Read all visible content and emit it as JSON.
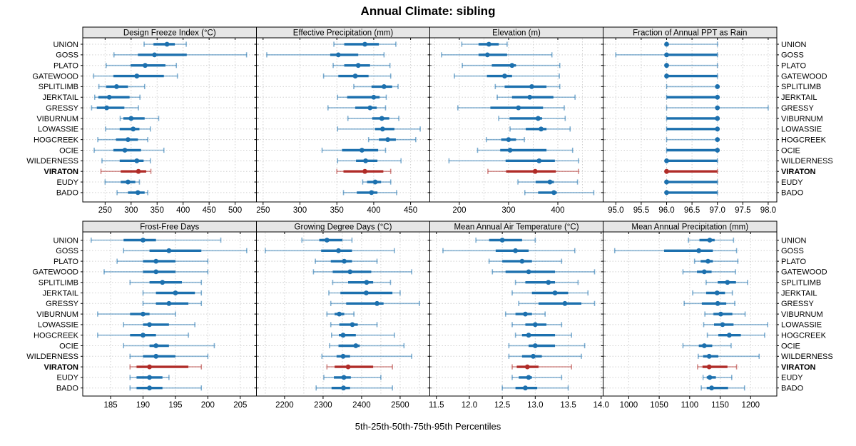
{
  "title": "Annual Climate: sibling",
  "caption": "5th-25th-50th-75th-95th Percentiles",
  "colors": {
    "blue": "#1c70ae",
    "red": "#b02c28",
    "strip_bg": "#e6e6e6",
    "grid": "#d0d0d0",
    "border": "#000000"
  },
  "chart_data": {
    "type": "dot-whisker percentile trellis (lattice dotplot)",
    "percentile_labels": [
      "5th",
      "25th",
      "50th",
      "75th",
      "95th"
    ],
    "layout": {
      "rows": 2,
      "cols": 4
    },
    "legend_position": "none",
    "grid": "dotted",
    "sites": [
      "UNION",
      "GOSS",
      "PLATO",
      "GATEWOOD",
      "SPLITLIMB",
      "JERKTAIL",
      "GRESSY",
      "VIBURNUM",
      "LOWASSIE",
      "HOGCREEK",
      "OCIE",
      "WILDERNESS",
      "VIRATON",
      "EUDY",
      "BADO"
    ],
    "highlight_site": "VIRATON",
    "panels": [
      {
        "title": "Design Freeze Index (°C)",
        "row": 0,
        "col": 0,
        "xlim": [
          207,
          541
        ],
        "ticks": [
          250,
          300,
          350,
          400,
          450,
          500
        ],
        "grid": [
          250,
          300,
          350,
          400,
          450,
          500
        ],
        "tick_decimals": 0,
        "series": {
          "UNION": [
            325,
            343,
            369,
            384,
            406
          ],
          "GOSS": [
            267,
            313,
            345,
            407,
            522
          ],
          "PLATO": [
            252,
            299,
            327,
            366,
            387
          ],
          "GATEWOOD": [
            228,
            266,
            311,
            363,
            389
          ],
          "SPLITLIMB": [
            238,
            252,
            272,
            294,
            326
          ],
          "JERKTAIL": [
            230,
            237,
            258,
            297,
            317
          ],
          "GRESSY": [
            224,
            234,
            253,
            287,
            314
          ],
          "VIBURNUM": [
            279,
            285,
            300,
            326,
            353
          ],
          "LOWASSIE": [
            251,
            278,
            304,
            316,
            337
          ],
          "HOGCREEK": [
            236,
            271,
            294,
            313,
            332
          ],
          "OCIE": [
            229,
            266,
            288,
            319,
            363
          ],
          "WILDERNESS": [
            244,
            278,
            311,
            324,
            337
          ],
          "VIRATON": [
            242,
            280,
            314,
            329,
            338
          ],
          "EUDY": [
            250,
            280,
            294,
            308,
            316
          ],
          "BADO": [
            273,
            294,
            313,
            326,
            332
          ]
        }
      },
      {
        "title": "Effective Precipitation (mm)",
        "row": 0,
        "col": 1,
        "xlim": [
          241,
          476
        ],
        "ticks": [
          250,
          300,
          350,
          400,
          450
        ],
        "grid": [
          250,
          300,
          350,
          400,
          450
        ],
        "tick_decimals": 0,
        "series": {
          "UNION": [
            346,
            360,
            388,
            407,
            430
          ],
          "GOSS": [
            255,
            341,
            352,
            379,
            414
          ],
          "PLATO": [
            345,
            360,
            379,
            395,
            422
          ],
          "GATEWOOD": [
            332,
            352,
            375,
            393,
            423
          ],
          "SPLITLIMB": [
            373,
            397,
            414,
            425,
            433
          ],
          "JERKTAIL": [
            351,
            364,
            400,
            408,
            417
          ],
          "GRESSY": [
            338,
            375,
            395,
            404,
            416
          ],
          "VIBURNUM": [
            365,
            398,
            411,
            421,
            434
          ],
          "LOWASSIE": [
            351,
            402,
            412,
            428,
            463
          ],
          "HOGCREEK": [
            393,
            407,
            419,
            430,
            457
          ],
          "OCIE": [
            330,
            357,
            384,
            406,
            416
          ],
          "WILDERNESS": [
            351,
            376,
            389,
            405,
            437
          ],
          "VIRATON": [
            350,
            359,
            388,
            413,
            423
          ],
          "EUDY": [
            385,
            391,
            402,
            410,
            423
          ],
          "BADO": [
            359,
            377,
            397,
            405,
            431
          ]
        }
      },
      {
        "title": "Elevation (m)",
        "row": 0,
        "col": 2,
        "xlim": [
          140,
          492
        ],
        "ticks": [
          200,
          300,
          400
        ],
        "grid": [
          150,
          200,
          250,
          300,
          350,
          400,
          450
        ],
        "tick_decimals": 0,
        "series": {
          "UNION": [
            205,
            239,
            260,
            280,
            297
          ],
          "GOSS": [
            164,
            239,
            257,
            297,
            388
          ],
          "PLATO": [
            206,
            266,
            307,
            315,
            404
          ],
          "GATEWOOD": [
            190,
            256,
            292,
            307,
            403
          ],
          "SPLITLIMB": [
            273,
            292,
            347,
            377,
            404
          ],
          "JERKTAIL": [
            277,
            307,
            343,
            391,
            435
          ],
          "GRESSY": [
            197,
            263,
            320,
            370,
            413
          ],
          "VIBURNUM": [
            280,
            302,
            360,
            368,
            415
          ],
          "LOWASSIE": [
            303,
            335,
            366,
            377,
            425
          ],
          "HOGCREEK": [
            255,
            285,
            300,
            315,
            332
          ],
          "OCIE": [
            237,
            283,
            303,
            377,
            430
          ],
          "WILDERNESS": [
            179,
            294,
            362,
            394,
            442
          ],
          "VIRATON": [
            258,
            295,
            354,
            396,
            442
          ],
          "EUDY": [
            319,
            355,
            384,
            392,
            440
          ],
          "BADO": [
            333,
            360,
            392,
            398,
            473
          ]
        }
      },
      {
        "title": "Fraction of Annual PPT as Rain",
        "row": 0,
        "col": 3,
        "xlim": [
          94.75,
          98.17
        ],
        "ticks": [
          95.0,
          95.5,
          96.0,
          96.5,
          97.0,
          97.5,
          98.0
        ],
        "grid": [
          95.0,
          95.5,
          96.0,
          96.5,
          97.0,
          97.5,
          98.0
        ],
        "tick_decimals": 1,
        "series": {
          "UNION": [
            96,
            96,
            96,
            96,
            97
          ],
          "GOSS": [
            95,
            96,
            96,
            97,
            97
          ],
          "PLATO": [
            96,
            96,
            96,
            96,
            97
          ],
          "GATEWOOD": [
            96,
            96,
            96,
            97,
            97
          ],
          "SPLITLIMB": [
            96,
            97,
            97,
            97,
            97
          ],
          "JERKTAIL": [
            96,
            96,
            97,
            97,
            97
          ],
          "GRESSY": [
            96,
            97,
            97,
            97,
            98
          ],
          "VIBURNUM": [
            96,
            96,
            97,
            97,
            97
          ],
          "LOWASSIE": [
            96,
            96,
            97,
            97,
            97
          ],
          "HOGCREEK": [
            96,
            97,
            97,
            97,
            97
          ],
          "OCIE": [
            96,
            96,
            97,
            97,
            97
          ],
          "WILDERNESS": [
            96,
            96,
            96,
            97,
            97
          ],
          "VIRATON": [
            96,
            96,
            96,
            97,
            97
          ],
          "EUDY": [
            96,
            96,
            96,
            97,
            97
          ],
          "BADO": [
            96,
            96,
            96,
            97,
            97
          ]
        }
      },
      {
        "title": "Frost-Free Days",
        "row": 1,
        "col": 0,
        "xlim": [
          180.7,
          207.5
        ],
        "ticks": [
          185,
          190,
          195,
          200,
          205
        ],
        "grid": [
          185,
          190,
          195,
          200,
          205
        ],
        "tick_decimals": 0,
        "series": {
          "UNION": [
            182,
            187,
            190,
            192,
            202
          ],
          "GOSS": [
            187,
            191,
            194,
            199,
            206
          ],
          "PLATO": [
            186,
            190,
            192,
            195,
            200
          ],
          "GATEWOOD": [
            184,
            190,
            192,
            195,
            200
          ],
          "SPLITLIMB": [
            188,
            191,
            193,
            196,
            199
          ],
          "JERKTAIL": [
            190,
            192,
            195,
            198,
            199
          ],
          "GRESSY": [
            190,
            192,
            194,
            197,
            199
          ],
          "VIBURNUM": [
            183,
            188,
            190,
            191,
            195
          ],
          "LOWASSIE": [
            187,
            190,
            191,
            194,
            198
          ],
          "HOGCREEK": [
            183,
            188,
            190,
            192,
            197
          ],
          "OCIE": [
            187,
            191,
            192,
            194,
            201
          ],
          "WILDERNESS": [
            188,
            190,
            192,
            195,
            200
          ],
          "VIRATON": [
            188,
            189,
            191,
            197,
            199
          ],
          "EUDY": [
            188,
            189,
            191,
            193,
            194
          ],
          "BADO": [
            188,
            189,
            191,
            193,
            199
          ]
        }
      },
      {
        "title": "Growing Degree Days (°C)",
        "row": 1,
        "col": 1,
        "xlim": [
          2127,
          2577
        ],
        "ticks": [
          2200,
          2300,
          2400,
          2500
        ],
        "grid": [
          2150,
          2200,
          2250,
          2300,
          2350,
          2400,
          2450,
          2500,
          2550
        ],
        "tick_decimals": 0,
        "series": {
          "UNION": [
            2245,
            2290,
            2310,
            2350,
            2375
          ],
          "GOSS": [
            2150,
            2295,
            2340,
            2375,
            2485
          ],
          "PLATO": [
            2280,
            2320,
            2355,
            2375,
            2440
          ],
          "GATEWOOD": [
            2275,
            2325,
            2370,
            2425,
            2530
          ],
          "SPLITLIMB": [
            2325,
            2365,
            2413,
            2430,
            2475
          ],
          "JERKTAIL": [
            2315,
            2345,
            2412,
            2480,
            2500
          ],
          "GRESSY": [
            2320,
            2360,
            2440,
            2457,
            2550
          ],
          "VIBURNUM": [
            2310,
            2330,
            2342,
            2355,
            2380
          ],
          "LOWASSIE": [
            2320,
            2342,
            2376,
            2390,
            2440
          ],
          "HOGCREEK": [
            2322,
            2341,
            2352,
            2385,
            2485
          ],
          "OCIE": [
            2317,
            2340,
            2385,
            2395,
            2510
          ],
          "WILDERNESS": [
            2297,
            2335,
            2352,
            2370,
            2530
          ],
          "VIRATON": [
            2310,
            2330,
            2365,
            2430,
            2480
          ],
          "EUDY": [
            2302,
            2328,
            2354,
            2372,
            2450
          ],
          "BADO": [
            2282,
            2322,
            2353,
            2370,
            2480
          ]
        }
      },
      {
        "title": "Mean Annual Air Temperature (°C)",
        "row": 1,
        "col": 2,
        "xlim": [
          11.4,
          14.03
        ],
        "ticks": [
          11.5,
          12.0,
          12.5,
          13.0,
          13.5,
          14.0
        ],
        "grid": [
          11.5,
          12.0,
          12.5,
          13.0,
          13.5,
          14.0
        ],
        "tick_decimals": 1,
        "series": {
          "UNION": [
            12.1,
            12.3,
            12.5,
            12.8,
            13.0
          ],
          "GOSS": [
            11.6,
            12.4,
            12.7,
            12.9,
            13.6
          ],
          "PLATO": [
            12.3,
            12.5,
            12.8,
            12.95,
            13.4
          ],
          "GATEWOOD": [
            12.35,
            12.55,
            12.9,
            13.3,
            13.9
          ],
          "SPLITLIMB": [
            12.7,
            12.85,
            13.2,
            13.3,
            13.65
          ],
          "JERKTAIL": [
            12.65,
            12.95,
            13.3,
            13.5,
            13.8
          ],
          "GRESSY": [
            12.75,
            13.05,
            13.45,
            13.7,
            13.9
          ],
          "VIBURNUM": [
            12.55,
            12.7,
            12.85,
            12.95,
            13.15
          ],
          "LOWASSIE": [
            12.65,
            12.85,
            13.0,
            13.17,
            13.4
          ],
          "HOGCREEK": [
            12.7,
            12.8,
            12.9,
            13.3,
            13.55
          ],
          "OCIE": [
            12.6,
            12.9,
            13.0,
            13.3,
            13.75
          ],
          "WILDERNESS": [
            12.6,
            12.8,
            12.97,
            13.1,
            13.7
          ],
          "VIRATON": [
            12.65,
            12.72,
            12.88,
            13.05,
            13.55
          ],
          "EUDY": [
            12.65,
            12.75,
            12.9,
            12.95,
            13.4
          ],
          "BADO": [
            12.5,
            12.7,
            12.85,
            13.03,
            13.5
          ]
        }
      },
      {
        "title": "Mean Annual Precipitation (mm)",
        "row": 1,
        "col": 3,
        "xlim": [
          958,
          1243
        ],
        "ticks": [
          1000,
          1050,
          1100,
          1150,
          1200
        ],
        "grid": [
          1000,
          1050,
          1100,
          1150,
          1200
        ],
        "tick_decimals": 0,
        "series": {
          "UNION": [
            1098,
            1116,
            1133,
            1141,
            1172
          ],
          "GOSS": [
            977,
            1058,
            1115,
            1138,
            1177
          ],
          "PLATO": [
            1108,
            1118,
            1130,
            1138,
            1179
          ],
          "GATEWOOD": [
            1089,
            1112,
            1124,
            1136,
            1175
          ],
          "SPLITLIMB": [
            1127,
            1146,
            1162,
            1176,
            1195
          ],
          "JERKTAIL": [
            1105,
            1127,
            1145,
            1158,
            1170
          ],
          "GRESSY": [
            1091,
            1120,
            1146,
            1160,
            1174
          ],
          "VIBURNUM": [
            1125,
            1139,
            1151,
            1170,
            1191
          ],
          "LOWASSIE": [
            1123,
            1140,
            1154,
            1172,
            1228
          ],
          "HOGCREEK": [
            1129,
            1147,
            1165,
            1184,
            1223
          ],
          "OCIE": [
            1089,
            1115,
            1124,
            1137,
            1168
          ],
          "WILDERNESS": [
            1114,
            1122,
            1132,
            1147,
            1214
          ],
          "VIRATON": [
            1113,
            1121,
            1132,
            1162,
            1177
          ],
          "EUDY": [
            1122,
            1128,
            1133,
            1143,
            1169
          ],
          "BADO": [
            1119,
            1128,
            1136,
            1163,
            1190
          ]
        }
      }
    ]
  }
}
